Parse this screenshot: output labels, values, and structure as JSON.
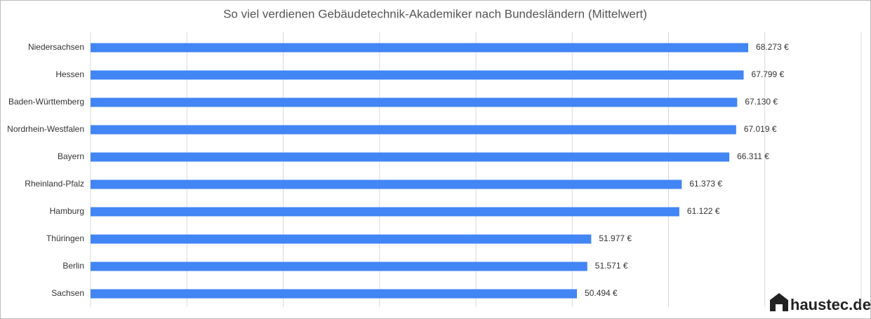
{
  "chart_data": {
    "type": "bar",
    "orientation": "horizontal",
    "title": "So viel verdienen Gebäudetechnik-Akademiker nach Bundesländern (Mittelwert)",
    "categories": [
      "Niedersachsen",
      "Hessen",
      "Baden-Württemberg",
      "Nordrhein-Westfalen",
      "Bayern",
      "Rheinland-Pfalz",
      "Hamburg",
      "Thüringen",
      "Berlin",
      "Sachsen"
    ],
    "values": [
      68273,
      67799,
      67130,
      67019,
      66311,
      61373,
      61122,
      51977,
      51571,
      50494
    ],
    "value_labels": [
      "68.273 €",
      "67.799 €",
      "67.130 €",
      "67.019 €",
      "66.311 €",
      "61.373 €",
      "61.122 €",
      "51.977 €",
      "51.571 €",
      "50.494 €"
    ],
    "color": "#4285f4",
    "xlim": [
      0,
      80000
    ],
    "xticks": [
      0,
      10000,
      20000,
      30000,
      40000,
      50000,
      60000,
      70000,
      80000
    ],
    "grid": true
  },
  "logo": "haustec.de"
}
